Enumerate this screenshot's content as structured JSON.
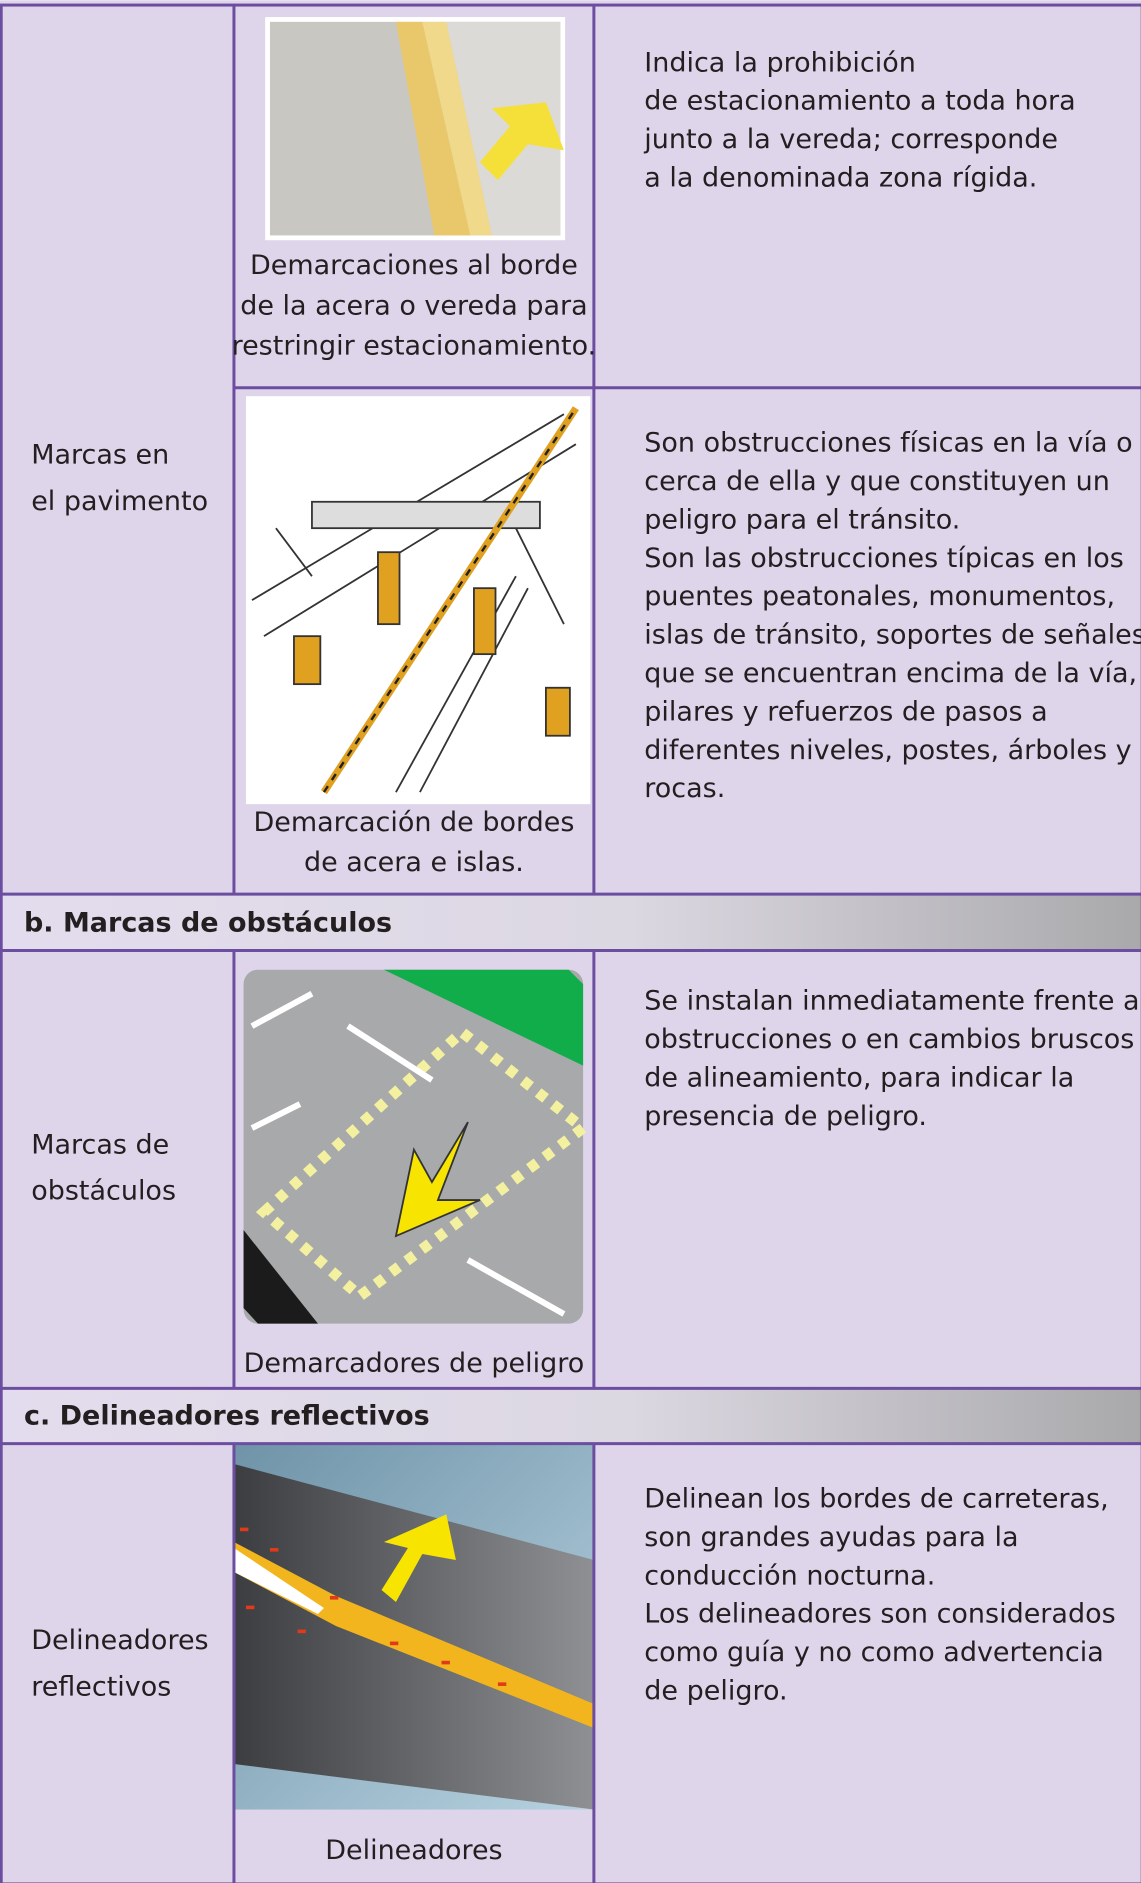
{
  "blocks": [
    {
      "label": [
        "Marcas en",
        "el pavimento"
      ],
      "items": [
        {
          "caption": [
            "Demarcaciones al borde",
            "de la acera o vereda para",
            "restringir estacionamiento."
          ],
          "description": [
            "Indica la prohibición",
            "de estacionamiento a toda hora",
            "junto a la vereda; corresponde",
            "a la denominada zona rígida."
          ]
        },
        {
          "caption": [
            "Demarcación de bordes",
            "de acera e islas."
          ],
          "description": [
            "Son obstrucciones físicas en la vía o",
            "cerca de ella y que constituyen un",
            "peligro para el tránsito.",
            "Son las obstrucciones típicas en los",
            "puentes peatonales, monumentos,",
            "islas de tránsito, soportes de señales",
            "que se encuentran encima de la vía,",
            "pilares y refuerzos de pasos a",
            "diferentes niveles, postes, árboles y",
            "rocas."
          ]
        }
      ]
    },
    {
      "heading": "b. Marcas de obstáculos",
      "label": [
        "Marcas de",
        "obstáculos"
      ],
      "items": [
        {
          "caption": [
            "Demarcadores de peligro"
          ],
          "description": [
            "Se instalan inmediatamente frente a",
            "obstrucciones o en cambios bruscos",
            "de alineamiento, para indicar la",
            "presencia de peligro."
          ]
        }
      ]
    },
    {
      "heading": "c. Delineadores reflectivos",
      "label": [
        "Delineadores",
        "reflectivos"
      ],
      "items": [
        {
          "caption": [
            "Delineadores"
          ],
          "description": [
            "Delinean los bordes de carreteras,",
            "son grandes ayudas para la",
            "conducción nocturna.",
            "Los delineadores son considerados",
            "como guía y no como advertencia",
            "de peligro."
          ]
        }
      ]
    }
  ]
}
